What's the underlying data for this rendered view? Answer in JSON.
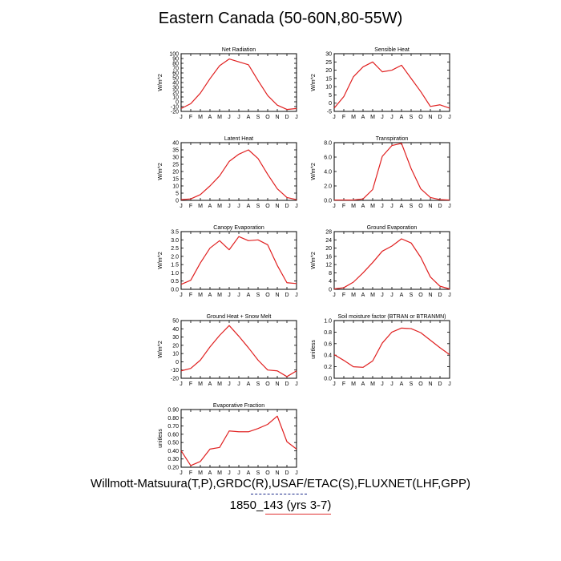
{
  "title": "Eastern Canada (50-60N,80-55W)",
  "footer": {
    "source": "Willmott-Matsuura(T,P),GRDC(R),USAF/ETAC(S),FLUXNET(LHF,GPP)",
    "case": "1850_143 (yrs 3-7)"
  },
  "colors": {
    "line": "#e02020",
    "axis": "#000000",
    "legend_dash": "#1a2a8a",
    "legend_solid": "#e03030"
  },
  "chart_data": [
    {
      "type": "line",
      "title": "Net Radiation",
      "ylabel": "W/m^2",
      "xlabel": "",
      "categories": [
        "J",
        "F",
        "M",
        "A",
        "M",
        "J",
        "J",
        "A",
        "S",
        "O",
        "N",
        "D",
        "J"
      ],
      "ylim": [
        -20,
        100
      ],
      "yticks": [
        -20,
        -10,
        0,
        10,
        20,
        30,
        40,
        50,
        60,
        70,
        80,
        90,
        100
      ],
      "ytick_labels": [
        "-20",
        "-10",
        "0",
        "10",
        "20",
        "30",
        "40",
        "50",
        "60",
        "70",
        "80",
        "90",
        "100"
      ],
      "grid": false,
      "series": [
        {
          "values": [
            -14,
            -4,
            18,
            48,
            75,
            89,
            83,
            77,
            44,
            13,
            -7,
            -16,
            -14
          ]
        }
      ]
    },
    {
      "type": "line",
      "title": "Sensible Heat",
      "ylabel": "W/m^2",
      "xlabel": "",
      "categories": [
        "J",
        "F",
        "M",
        "A",
        "M",
        "J",
        "J",
        "A",
        "S",
        "O",
        "N",
        "D",
        "J"
      ],
      "ylim": [
        -5,
        30
      ],
      "yticks": [
        -5,
        0,
        5,
        10,
        15,
        20,
        25,
        30
      ],
      "ytick_labels": [
        "-5",
        "0",
        "5",
        "10",
        "15",
        "20",
        "25",
        "30"
      ],
      "grid": false,
      "series": [
        {
          "values": [
            -3,
            4,
            16,
            22,
            25,
            19,
            20,
            23,
            15,
            7,
            -2,
            -1,
            -3
          ]
        }
      ]
    },
    {
      "type": "line",
      "title": "Latent Heat",
      "ylabel": "W/m^2",
      "xlabel": "",
      "categories": [
        "J",
        "F",
        "M",
        "A",
        "M",
        "J",
        "J",
        "A",
        "S",
        "O",
        "N",
        "D",
        "J"
      ],
      "ylim": [
        0,
        40
      ],
      "yticks": [
        0,
        5,
        10,
        15,
        20,
        25,
        30,
        35,
        40
      ],
      "ytick_labels": [
        "0",
        "5",
        "10",
        "15",
        "20",
        "25",
        "30",
        "35",
        "40"
      ],
      "grid": false,
      "series": [
        {
          "values": [
            0.5,
            1,
            4,
            10,
            17,
            27,
            32,
            35,
            29,
            18,
            8,
            2,
            0.5
          ]
        }
      ]
    },
    {
      "type": "line",
      "title": "Transpiration",
      "ylabel": "W/m^2",
      "xlabel": "",
      "categories": [
        "J",
        "F",
        "M",
        "A",
        "M",
        "J",
        "J",
        "A",
        "S",
        "O",
        "N",
        "D",
        "J"
      ],
      "ylim": [
        0,
        8
      ],
      "yticks": [
        0,
        2,
        4,
        6,
        8
      ],
      "ytick_labels": [
        "0.0",
        "2.0",
        "4.0",
        "6.0",
        "8.0"
      ],
      "grid": false,
      "series": [
        {
          "values": [
            0.05,
            0.05,
            0.05,
            0.2,
            1.5,
            6.1,
            7.6,
            7.9,
            4.4,
            1.6,
            0.4,
            0.1,
            0.05
          ]
        }
      ]
    },
    {
      "type": "line",
      "title": "Canopy Evaporation",
      "ylabel": "W/m^2",
      "xlabel": "",
      "categories": [
        "J",
        "F",
        "M",
        "A",
        "M",
        "J",
        "J",
        "A",
        "S",
        "O",
        "N",
        "D",
        "J"
      ],
      "ylim": [
        0,
        3.5
      ],
      "yticks": [
        0,
        0.5,
        1.0,
        1.5,
        2.0,
        2.5,
        3.0,
        3.5
      ],
      "ytick_labels": [
        "0.0",
        "0.5",
        "1.0",
        "1.5",
        "2.0",
        "2.5",
        "3.0",
        "3.5"
      ],
      "grid": false,
      "series": [
        {
          "values": [
            0.3,
            0.55,
            1.6,
            2.5,
            2.95,
            2.4,
            3.2,
            2.95,
            3.0,
            2.7,
            1.45,
            0.4,
            0.35
          ]
        }
      ]
    },
    {
      "type": "line",
      "title": "Ground Evaporation",
      "ylabel": "W/m^2",
      "xlabel": "",
      "categories": [
        "J",
        "F",
        "M",
        "A",
        "M",
        "J",
        "J",
        "A",
        "S",
        "O",
        "N",
        "D",
        "J"
      ],
      "ylim": [
        0,
        28
      ],
      "yticks": [
        0,
        4,
        8,
        12,
        16,
        20,
        24,
        28
      ],
      "ytick_labels": [
        "0",
        "4",
        "8",
        "12",
        "16",
        "20",
        "24",
        "28"
      ],
      "grid": false,
      "series": [
        {
          "values": [
            0.2,
            0.8,
            3.5,
            8,
            13,
            18.5,
            21,
            24.5,
            22.5,
            15.5,
            6,
            1.5,
            0.2
          ]
        }
      ]
    },
    {
      "type": "line",
      "title": "Ground Heat + Snow Melt",
      "ylabel": "W/m^2",
      "xlabel": "",
      "categories": [
        "J",
        "F",
        "M",
        "A",
        "M",
        "J",
        "J",
        "A",
        "S",
        "O",
        "N",
        "D",
        "J"
      ],
      "ylim": [
        -20,
        50
      ],
      "yticks": [
        -20,
        -10,
        0,
        10,
        20,
        30,
        40,
        50
      ],
      "ytick_labels": [
        "-20",
        "-10",
        "0",
        "10",
        "20",
        "30",
        "40",
        "50"
      ],
      "grid": false,
      "series": [
        {
          "values": [
            -11,
            -8,
            2,
            18,
            32,
            44,
            31,
            17,
            2,
            -10,
            -11,
            -18,
            -11
          ]
        }
      ]
    },
    {
      "type": "line",
      "title": "Soil moisture factor (BTRAN or BTRANMN)",
      "ylabel": "unitless",
      "xlabel": "",
      "categories": [
        "J",
        "F",
        "M",
        "A",
        "M",
        "J",
        "J",
        "A",
        "S",
        "O",
        "N",
        "D",
        "J"
      ],
      "ylim": [
        0,
        1.0
      ],
      "yticks": [
        0,
        0.2,
        0.4,
        0.6,
        0.8,
        1.0
      ],
      "ytick_labels": [
        "0.0",
        "0.2",
        "0.4",
        "0.6",
        "0.8",
        "1.0"
      ],
      "grid": false,
      "series": [
        {
          "values": [
            0.41,
            0.31,
            0.2,
            0.19,
            0.3,
            0.61,
            0.8,
            0.87,
            0.86,
            0.79,
            0.66,
            0.53,
            0.41
          ]
        }
      ]
    },
    {
      "type": "line",
      "title": "Evaporative Fraction",
      "ylabel": "unitless",
      "xlabel": "",
      "categories": [
        "J",
        "F",
        "M",
        "A",
        "M",
        "J",
        "J",
        "A",
        "S",
        "O",
        "N",
        "D",
        "J"
      ],
      "ylim": [
        0.2,
        0.9
      ],
      "yticks": [
        0.2,
        0.3,
        0.4,
        0.5,
        0.6,
        0.7,
        0.8,
        0.9
      ],
      "ytick_labels": [
        "0.20",
        "0.30",
        "0.40",
        "0.50",
        "0.60",
        "0.70",
        "0.80",
        "0.90"
      ],
      "grid": false,
      "series": [
        {
          "values": [
            0.4,
            0.22,
            0.27,
            0.42,
            0.44,
            0.64,
            0.63,
            0.63,
            0.67,
            0.72,
            0.82,
            0.51,
            0.42
          ]
        }
      ]
    }
  ]
}
